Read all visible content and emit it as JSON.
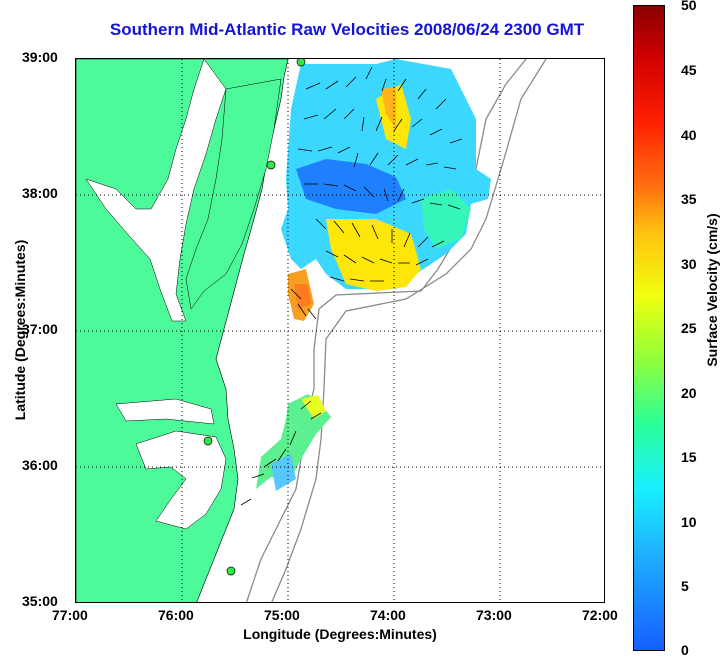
{
  "title": "Southern Mid-Atlantic Raw Velocities 2008/06/24 2300 GMT",
  "xlabel": "Longitude (Degrees:Minutes)",
  "ylabel": "Latitude (Degrees:Minutes)",
  "x_ticks": [
    "77:00",
    "76:00",
    "75:00",
    "74:00",
    "73:00",
    "72:00"
  ],
  "y_ticks": [
    "39:00",
    "38:00",
    "37:00",
    "36:00",
    "35:00"
  ],
  "colorbar": {
    "label": "Surface Velocity (cm/s)",
    "ticks": [
      "50",
      "45",
      "40",
      "35",
      "30",
      "25",
      "20",
      "15",
      "10",
      "5",
      "0"
    ]
  },
  "colors": {
    "land": "#4dfa9a",
    "title": "#1414d8",
    "grid": "#000000",
    "bathymetry": "#8a8a8a"
  }
}
